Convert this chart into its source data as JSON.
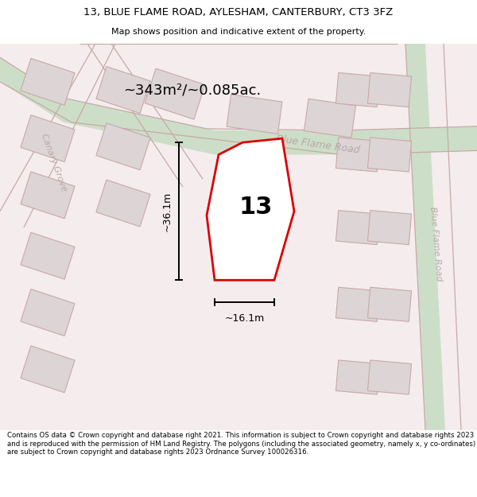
{
  "title_line1": "13, BLUE FLAME ROAD, AYLESHAM, CANTERBURY, CT3 3FZ",
  "title_line2": "Map shows position and indicative extent of the property.",
  "footer_text": "Contains OS data © Crown copyright and database right 2021. This information is subject to Crown copyright and database rights 2023 and is reproduced with the permission of HM Land Registry. The polygons (including the associated geometry, namely x, y co-ordinates) are subject to Crown copyright and database rights 2023 Ordnance Survey 100026316.",
  "area_label": "~343m²/~0.085ac.",
  "plot_number": "13",
  "dim_width": "~16.1m",
  "dim_height": "~36.1m",
  "road_label_top": "Blue Flame Road",
  "road_label_right": "Blue Flame Road",
  "road_label_left": "Canary Grove",
  "map_bg": "#f5efef",
  "road_fill": "#cddec8",
  "building_fill": "#ddd5d5",
  "building_stroke": "#c8a8a8",
  "plot_outline_color": "#dd0000",
  "plot_fill": "#ffffff",
  "road_stroke": "#c8a8a8",
  "dim_line_color": "#000000",
  "title_bg": "#ffffff",
  "footer_bg": "#ffffff"
}
